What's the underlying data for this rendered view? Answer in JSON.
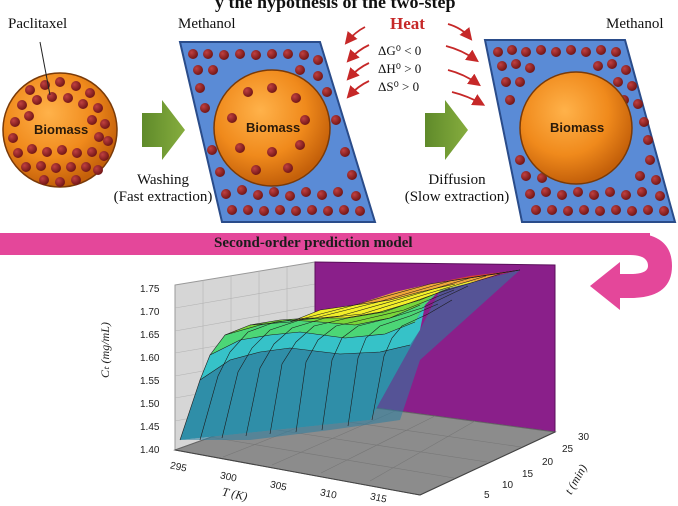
{
  "title_fragment": "y the hypothesis of the two-step",
  "labels": {
    "paclitaxel": "Paclitaxel",
    "methanol_left": "Methanol",
    "methanol_right": "Methanol",
    "biomass": "Biomass",
    "heat": "Heat"
  },
  "steps": {
    "washing_line1": "Washing",
    "washing_line2": "(Fast extraction)",
    "diffusion_line1": "Diffusion",
    "diffusion_line2": "(Slow extraction)"
  },
  "thermo": {
    "dG": "ΔG⁰ < 0",
    "dH": "ΔH⁰ > 0",
    "dS": "ΔS⁰ > 0"
  },
  "banner": "Second-order prediction model",
  "plot": {
    "type": "surface3d",
    "y_ticks": [
      "1.75",
      "1.70",
      "1.65",
      "1.60",
      "1.55",
      "1.50",
      "1.45",
      "1.40"
    ],
    "x_ticks": [
      "295",
      "300",
      "305",
      "310",
      "315"
    ],
    "t_ticks": [
      "30",
      "25",
      "20",
      "15",
      "10",
      "5"
    ],
    "y_label": "Cₜ (mg/mL)",
    "x_label": "T (K)",
    "t_label": "t (min)",
    "colors": {
      "side_wall": "#8a1f8a",
      "back_wall": "#d6d6d6",
      "floor": "#8c8c8c",
      "banner": "#e4479a",
      "heat": "#c62828"
    }
  }
}
